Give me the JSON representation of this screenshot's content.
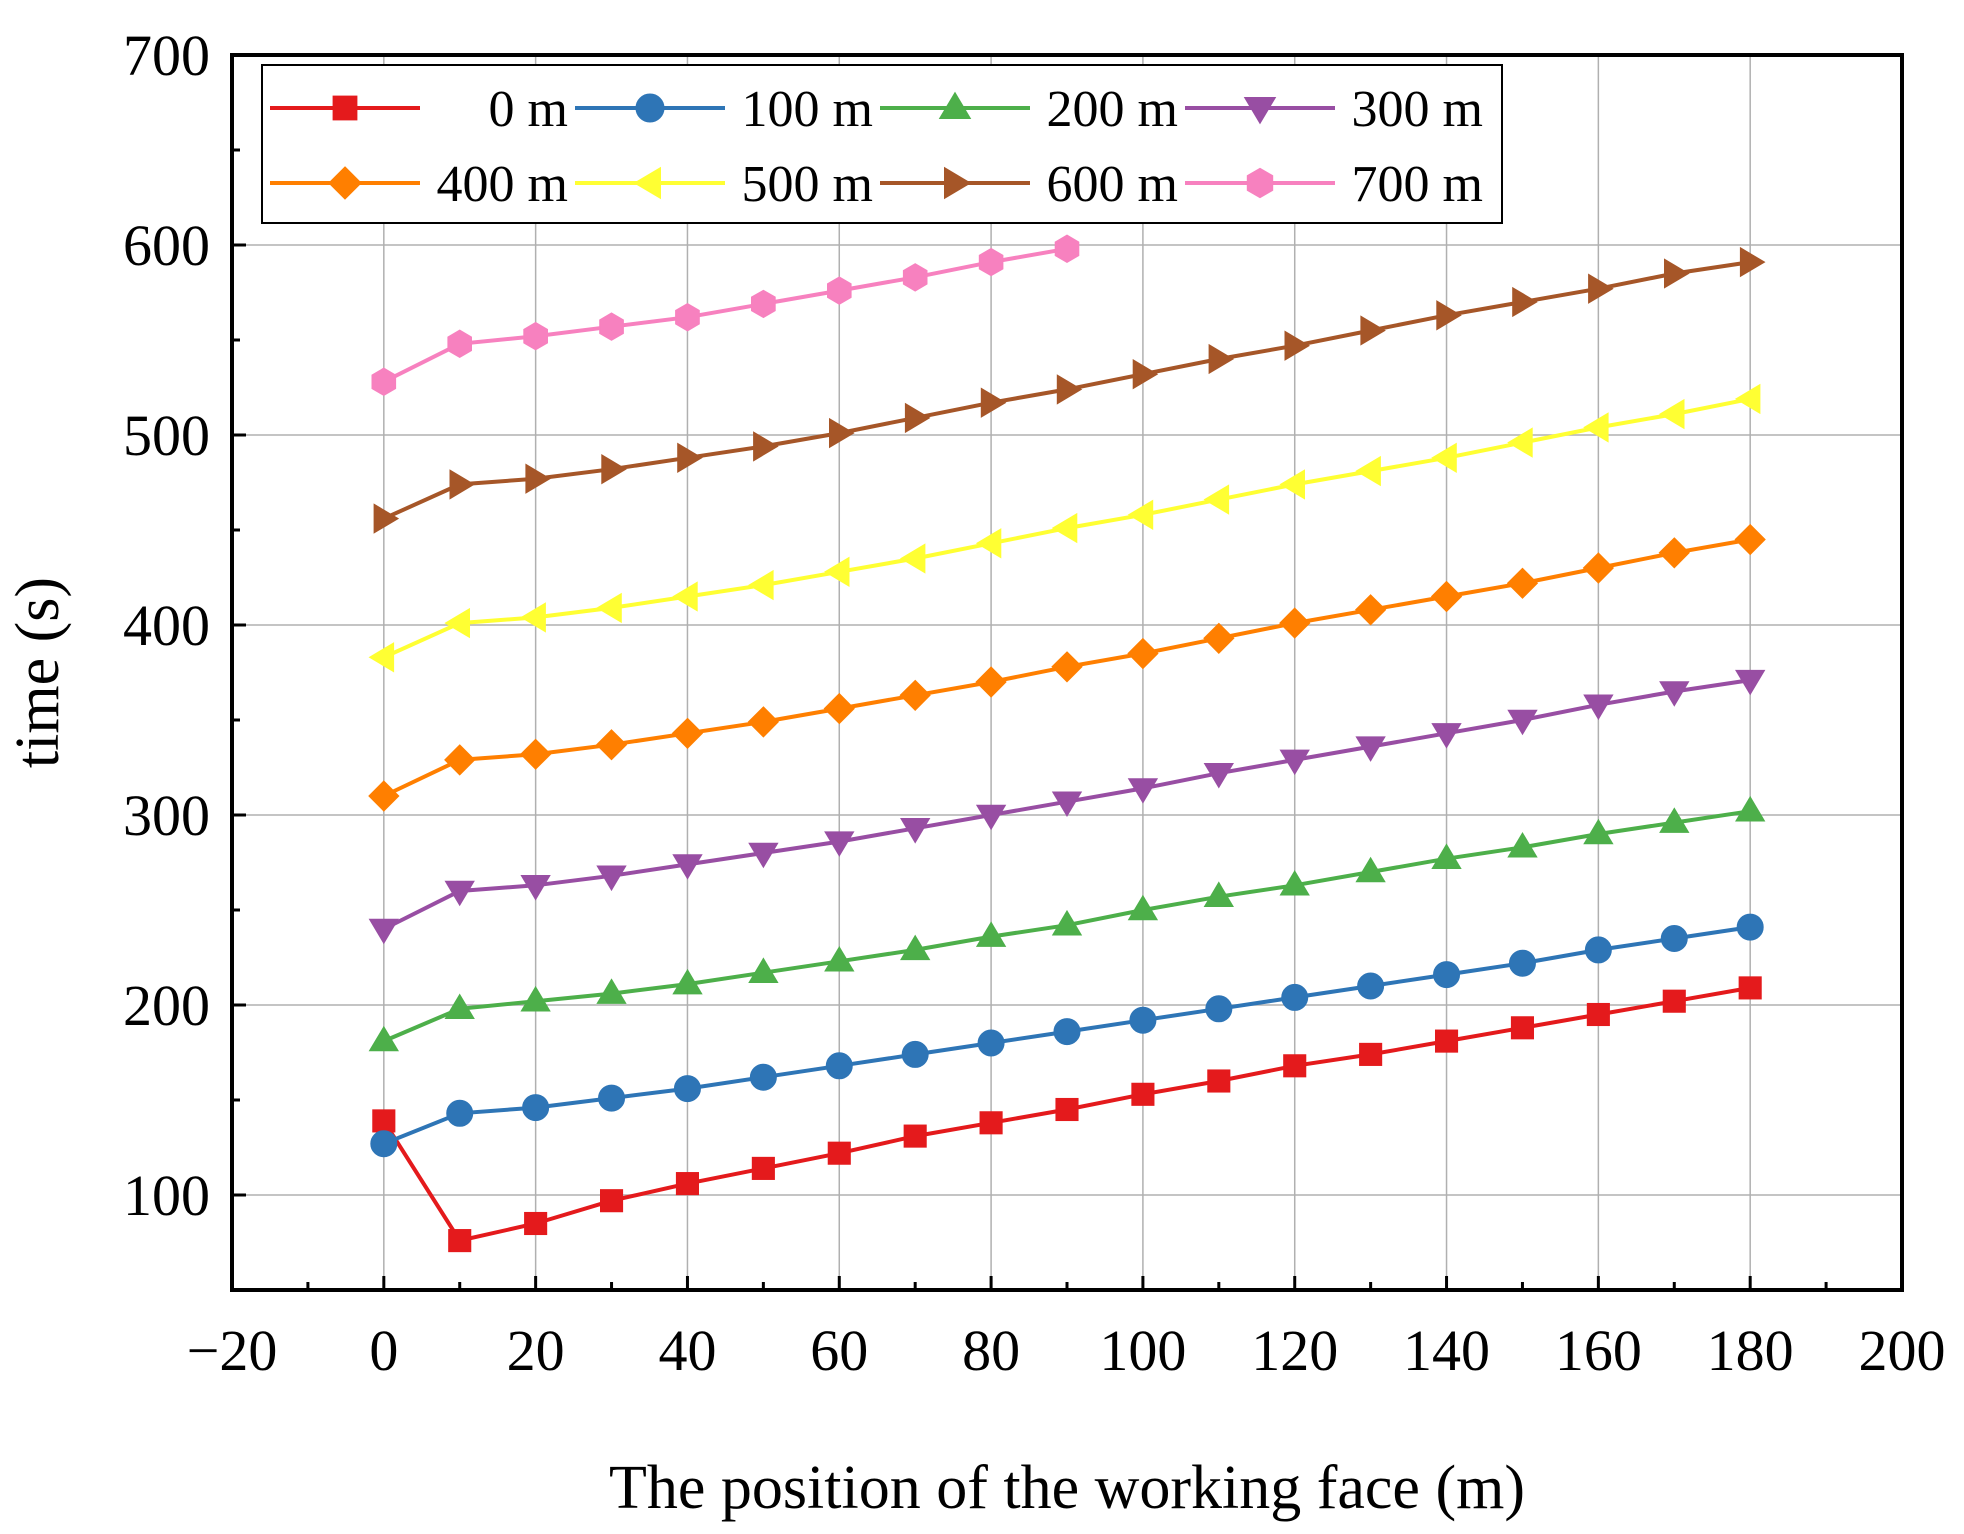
{
  "chart_data": {
    "type": "line",
    "title": "",
    "xlabel": "The position of the working face (m)",
    "ylabel": "time (s)",
    "xlim": [
      -20,
      200
    ],
    "ylim": [
      50,
      700
    ],
    "xticks": [
      -20,
      0,
      20,
      40,
      60,
      80,
      100,
      120,
      140,
      160,
      180,
      200
    ],
    "xtick_labels": [
      "−20",
      "0",
      "20",
      "40",
      "60",
      "80",
      "100",
      "120",
      "140",
      "160",
      "180",
      "200"
    ],
    "yticks": [
      100,
      200,
      300,
      400,
      500,
      600,
      700
    ],
    "ytick_labels": [
      "100",
      "200",
      "300",
      "400",
      "500",
      "600",
      "700"
    ],
    "grid": true,
    "legend_position": "top-left",
    "series": [
      {
        "name": "0 m",
        "color": "#e41a1c",
        "marker": "square",
        "x": [
          0,
          10,
          20,
          30,
          40,
          50,
          60,
          70,
          80,
          90,
          100,
          110,
          120,
          130,
          140,
          150,
          160,
          170,
          180
        ],
        "y": [
          139,
          76,
          85,
          97,
          106,
          114,
          122,
          131,
          138,
          145,
          153,
          160,
          168,
          174,
          181,
          188,
          195,
          202,
          209
        ]
      },
      {
        "name": "100 m",
        "color": "#2e75b6",
        "marker": "circle",
        "x": [
          0,
          10,
          20,
          30,
          40,
          50,
          60,
          70,
          80,
          90,
          100,
          110,
          120,
          130,
          140,
          150,
          160,
          170,
          180
        ],
        "y": [
          127,
          143,
          146,
          151,
          156,
          162,
          168,
          174,
          180,
          186,
          192,
          198,
          204,
          210,
          216,
          222,
          229,
          235,
          241
        ]
      },
      {
        "name": "200 m",
        "color": "#4daf4a",
        "marker": "triangle-up",
        "x": [
          0,
          10,
          20,
          30,
          40,
          50,
          60,
          70,
          80,
          90,
          100,
          110,
          120,
          130,
          140,
          150,
          160,
          170,
          180
        ],
        "y": [
          181,
          198,
          202,
          206,
          211,
          217,
          223,
          229,
          236,
          242,
          250,
          257,
          263,
          270,
          277,
          283,
          290,
          296,
          302
        ]
      },
      {
        "name": "300 m",
        "color": "#984ea3",
        "marker": "triangle-down",
        "x": [
          0,
          10,
          20,
          30,
          40,
          50,
          60,
          70,
          80,
          90,
          100,
          110,
          120,
          130,
          140,
          150,
          160,
          170,
          180
        ],
        "y": [
          240,
          260,
          263,
          268,
          274,
          280,
          286,
          293,
          300,
          307,
          314,
          322,
          329,
          336,
          343,
          350,
          358,
          365,
          371
        ]
      },
      {
        "name": "400 m",
        "color": "#ff7f00",
        "marker": "diamond",
        "x": [
          0,
          10,
          20,
          30,
          40,
          50,
          60,
          70,
          80,
          90,
          100,
          110,
          120,
          130,
          140,
          150,
          160,
          170,
          180
        ],
        "y": [
          310,
          329,
          332,
          337,
          343,
          349,
          356,
          363,
          370,
          378,
          385,
          393,
          401,
          408,
          415,
          422,
          430,
          438,
          445
        ]
      },
      {
        "name": "500 m",
        "color": "#ffff33",
        "marker": "triangle-left",
        "x": [
          0,
          10,
          20,
          30,
          40,
          50,
          60,
          70,
          80,
          90,
          100,
          110,
          120,
          130,
          140,
          150,
          160,
          170,
          180
        ],
        "y": [
          383,
          401,
          404,
          409,
          415,
          421,
          428,
          435,
          443,
          451,
          458,
          466,
          474,
          481,
          488,
          496,
          504,
          511,
          519
        ]
      },
      {
        "name": "600 m",
        "color": "#a65628",
        "marker": "triangle-right",
        "x": [
          0,
          10,
          20,
          30,
          40,
          50,
          60,
          70,
          80,
          90,
          100,
          110,
          120,
          130,
          140,
          150,
          160,
          170,
          180
        ],
        "y": [
          456,
          474,
          477,
          482,
          488,
          494,
          501,
          509,
          517,
          524,
          532,
          540,
          547,
          555,
          563,
          570,
          577,
          585,
          591
        ]
      },
      {
        "name": "700 m",
        "color": "#f781bf",
        "marker": "hexagon",
        "x": [
          0,
          10,
          20,
          30,
          40,
          50,
          60,
          70,
          80,
          90
        ],
        "y": [
          528,
          548,
          552,
          557,
          562,
          569,
          576,
          583,
          591,
          598
        ]
      }
    ]
  }
}
